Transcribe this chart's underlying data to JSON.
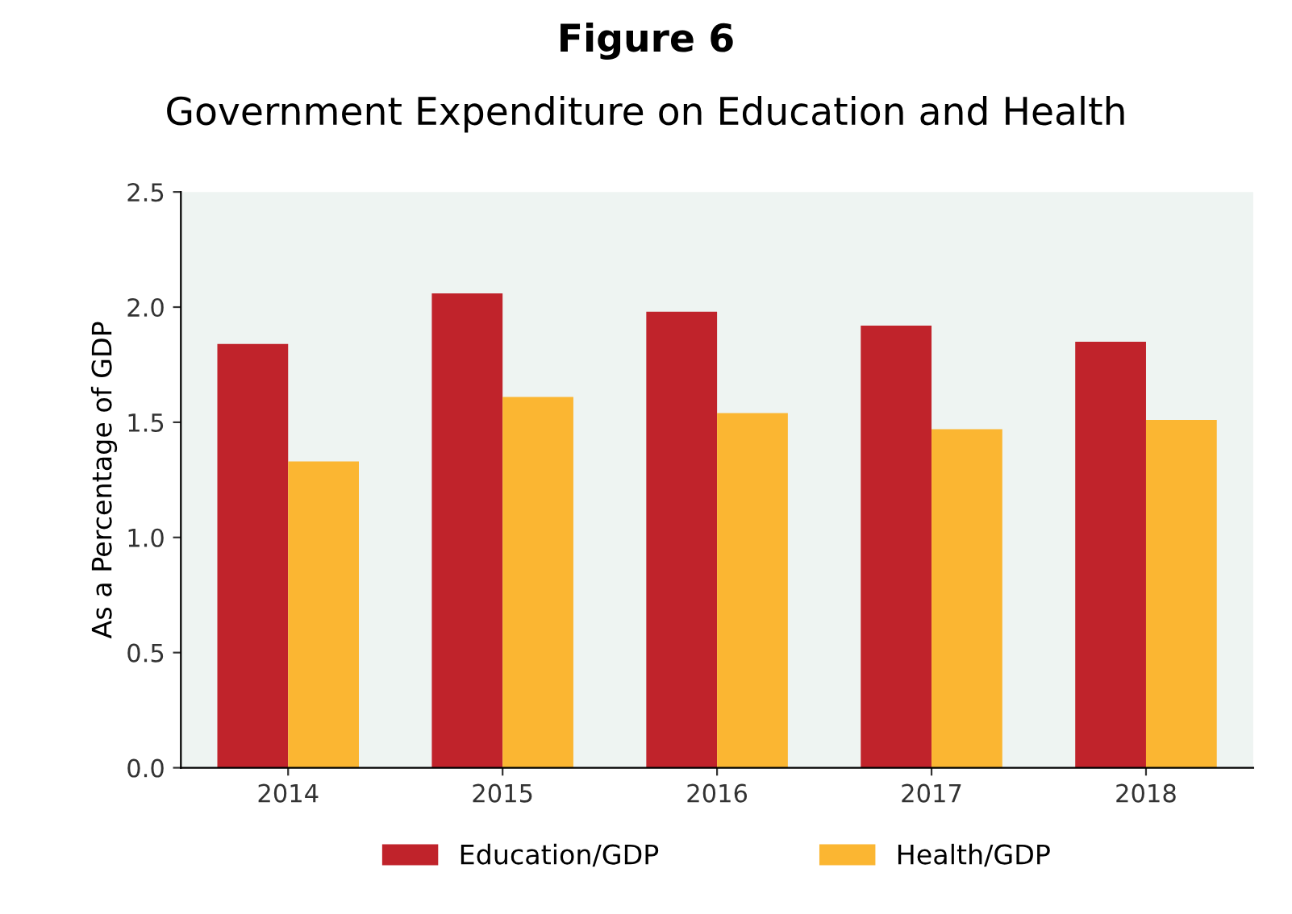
{
  "chart_data": {
    "type": "bar",
    "title": "Figure 6",
    "subtitle": "Government Expenditure on Education and Health",
    "ylabel": "As a Percentage of GDP",
    "categories": [
      "2014",
      "2015",
      "2016",
      "2017",
      "2018"
    ],
    "series": [
      {
        "name": "Education/GDP",
        "color": "#c0232b",
        "values": [
          1.84,
          2.06,
          1.98,
          1.92,
          1.85
        ]
      },
      {
        "name": "Health/GDP",
        "color": "#fbb632",
        "values": [
          1.33,
          1.61,
          1.54,
          1.47,
          1.51
        ]
      }
    ],
    "ylim": [
      0,
      2.5
    ],
    "yticks": [
      {
        "value": 0,
        "label": "0.0"
      },
      {
        "value": 0.5,
        "label": "0.5"
      },
      {
        "value": 1,
        "label": "1.0"
      },
      {
        "value": 1.5,
        "label": "1.5"
      },
      {
        "value": 2,
        "label": "2.0"
      },
      {
        "value": 2.5,
        "label": "2.5"
      }
    ],
    "grid": false,
    "legend": "bottom"
  }
}
